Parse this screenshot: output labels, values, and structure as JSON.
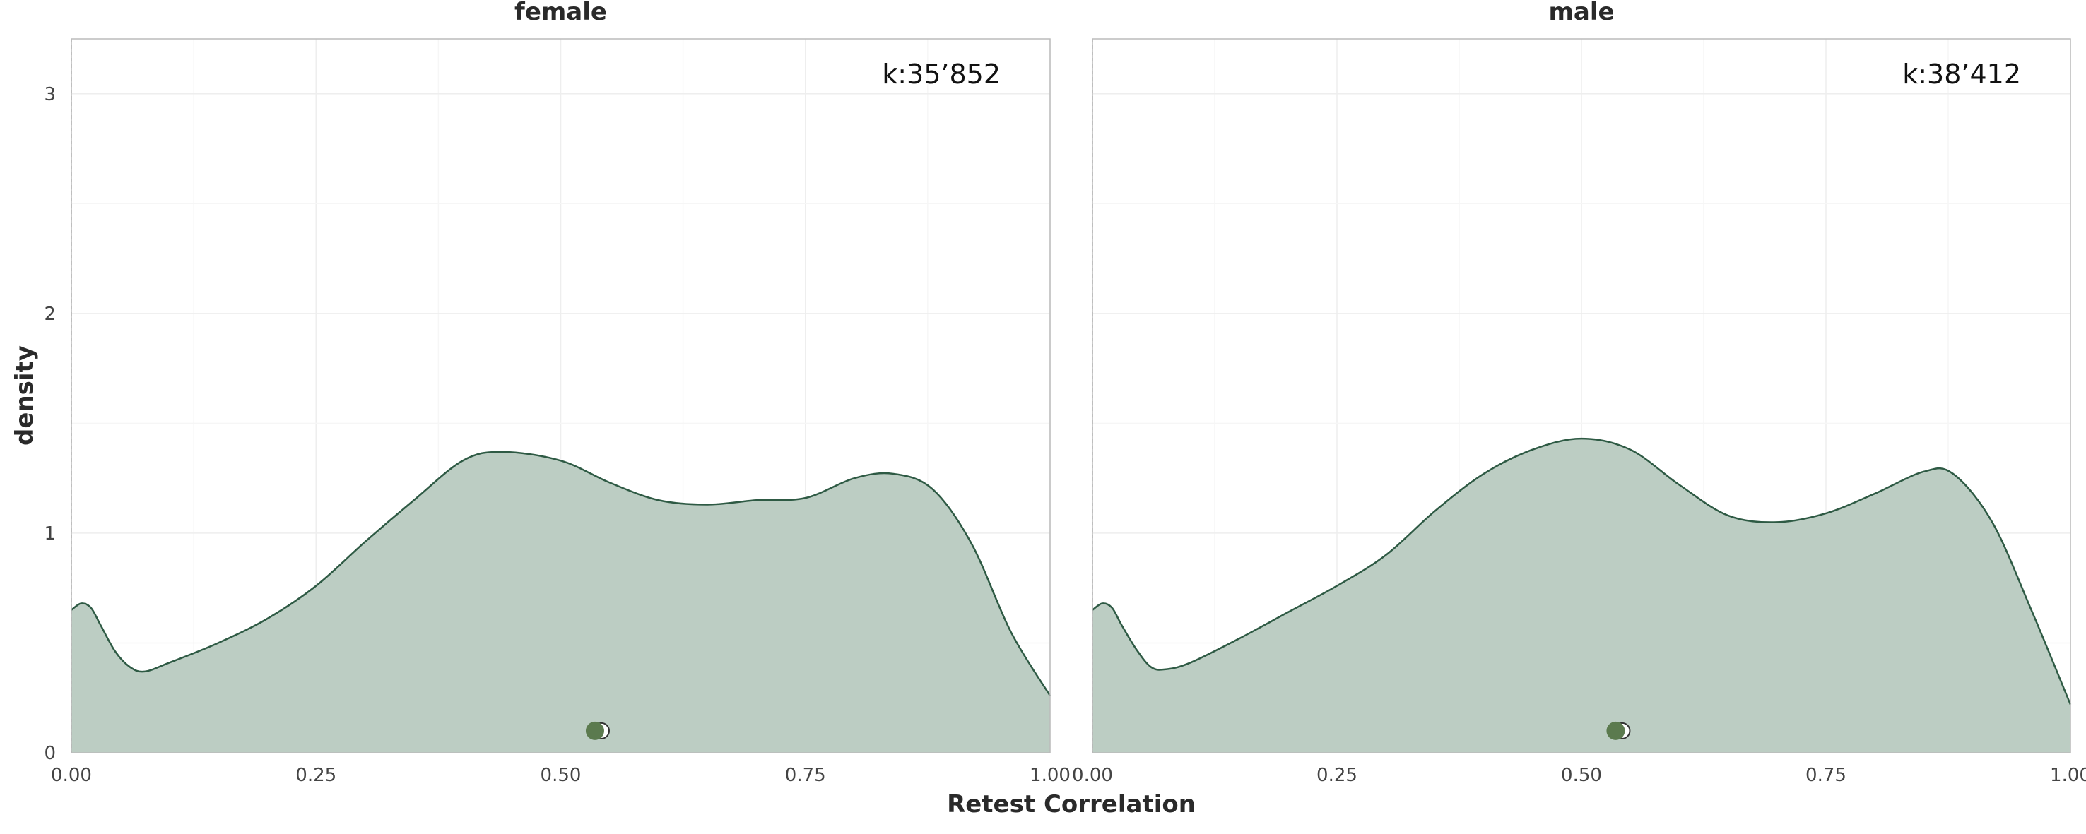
{
  "chart_data": {
    "type": "area",
    "xlabel": "Retest Correlation",
    "ylabel": "density",
    "xlim": [
      0,
      1
    ],
    "ylim": [
      0,
      3.25
    ],
    "x_ticks": [
      "0.00",
      "0.25",
      "0.50",
      "0.75",
      "1.00"
    ],
    "y_ticks": [
      "0",
      "1",
      "2",
      "3"
    ],
    "grid": true,
    "colors": {
      "fill": "#bccdc3",
      "line": "#2e5a44",
      "point": "#5b7a4e",
      "vline": "#999999",
      "frame": "#bbbbbb"
    },
    "panels": [
      {
        "title": "female",
        "k_label": "k:35’852",
        "point": {
          "x": 0.535,
          "y": 0.1
        },
        "density": [
          [
            0.0,
            0.65
          ],
          [
            0.01,
            0.68
          ],
          [
            0.02,
            0.66
          ],
          [
            0.03,
            0.58
          ],
          [
            0.045,
            0.46
          ],
          [
            0.06,
            0.39
          ],
          [
            0.075,
            0.37
          ],
          [
            0.1,
            0.41
          ],
          [
            0.15,
            0.5
          ],
          [
            0.2,
            0.61
          ],
          [
            0.25,
            0.76
          ],
          [
            0.3,
            0.96
          ],
          [
            0.35,
            1.15
          ],
          [
            0.4,
            1.33
          ],
          [
            0.44,
            1.37
          ],
          [
            0.5,
            1.33
          ],
          [
            0.55,
            1.23
          ],
          [
            0.6,
            1.15
          ],
          [
            0.65,
            1.13
          ],
          [
            0.7,
            1.15
          ],
          [
            0.75,
            1.16
          ],
          [
            0.8,
            1.25
          ],
          [
            0.84,
            1.27
          ],
          [
            0.88,
            1.2
          ],
          [
            0.92,
            0.95
          ],
          [
            0.96,
            0.55
          ],
          [
            1.0,
            0.26
          ]
        ]
      },
      {
        "title": "male",
        "k_label": "k:38’412",
        "point": {
          "x": 0.535,
          "y": 0.1
        },
        "density": [
          [
            0.0,
            0.65
          ],
          [
            0.01,
            0.68
          ],
          [
            0.02,
            0.66
          ],
          [
            0.03,
            0.58
          ],
          [
            0.045,
            0.47
          ],
          [
            0.06,
            0.39
          ],
          [
            0.075,
            0.38
          ],
          [
            0.1,
            0.41
          ],
          [
            0.15,
            0.52
          ],
          [
            0.2,
            0.64
          ],
          [
            0.25,
            0.76
          ],
          [
            0.3,
            0.9
          ],
          [
            0.35,
            1.1
          ],
          [
            0.4,
            1.27
          ],
          [
            0.45,
            1.38
          ],
          [
            0.5,
            1.43
          ],
          [
            0.55,
            1.38
          ],
          [
            0.6,
            1.22
          ],
          [
            0.65,
            1.08
          ],
          [
            0.7,
            1.05
          ],
          [
            0.75,
            1.09
          ],
          [
            0.8,
            1.18
          ],
          [
            0.85,
            1.28
          ],
          [
            0.88,
            1.27
          ],
          [
            0.92,
            1.05
          ],
          [
            0.96,
            0.65
          ],
          [
            1.0,
            0.22
          ]
        ]
      }
    ]
  }
}
